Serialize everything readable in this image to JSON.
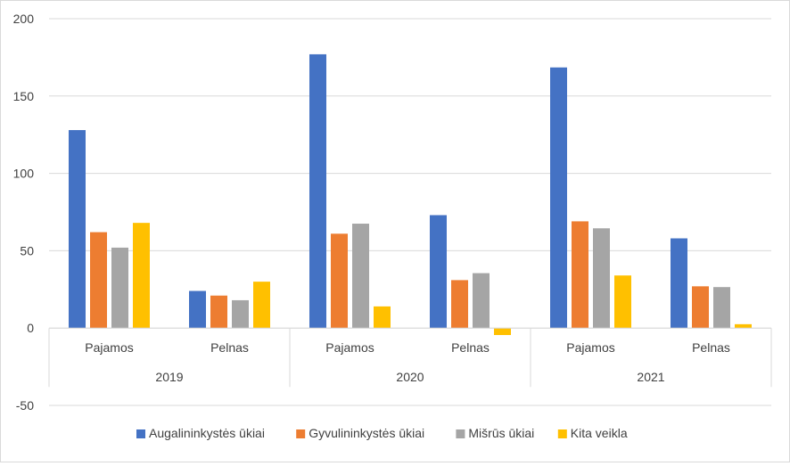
{
  "chart_data": {
    "type": "bar",
    "groups": [
      {
        "label": "2019",
        "categories": [
          "Pajamos",
          "Pelnas"
        ]
      },
      {
        "label": "2020",
        "categories": [
          "Pajamos",
          "Pelnas"
        ]
      },
      {
        "label": "2021",
        "categories": [
          "Pajamos",
          "Pelnas"
        ]
      }
    ],
    "series": [
      {
        "name": "Augalininkystės ūkiai",
        "color": "#4472C4",
        "values": [
          128,
          24,
          177,
          73,
          168.5,
          58
        ]
      },
      {
        "name": "Gyvulininkystės ūkiai",
        "color": "#ED7D31",
        "values": [
          62,
          21,
          61,
          31,
          69,
          27
        ]
      },
      {
        "name": "Mišrūs ūkiai",
        "color": "#A5A5A5",
        "values": [
          52,
          18,
          67.5,
          35.5,
          64.5,
          26.5
        ]
      },
      {
        "name": "Kita veikla",
        "color": "#FFC000",
        "values": [
          68,
          30,
          14,
          -4.5,
          34,
          2.5
        ]
      }
    ],
    "ylim": [
      -50,
      200
    ],
    "yticks": [
      -50,
      0,
      50,
      100,
      150,
      200
    ],
    "grid": true,
    "legend_position": "bottom"
  }
}
